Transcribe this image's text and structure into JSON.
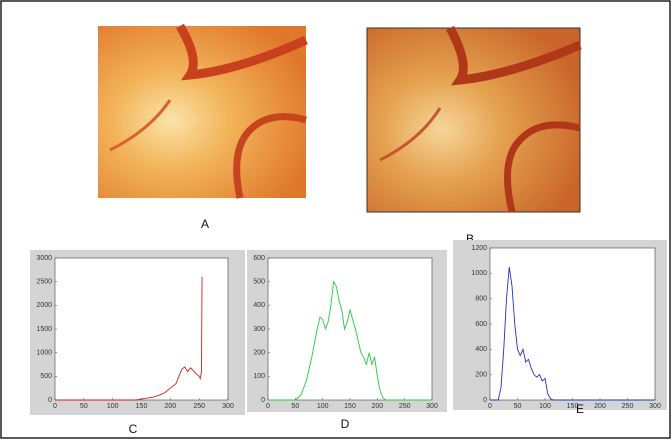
{
  "images": [
    {
      "label": "A"
    },
    {
      "label": "B"
    }
  ],
  "chart_data": [
    {
      "type": "line",
      "label": "C",
      "color": "#cc2222",
      "x": [
        0,
        140,
        150,
        160,
        170,
        180,
        190,
        200,
        205,
        210,
        215,
        220,
        225,
        230,
        235,
        240,
        245,
        250,
        252,
        254,
        255
      ],
      "values": [
        0,
        0,
        20,
        40,
        60,
        100,
        150,
        250,
        300,
        350,
        500,
        650,
        700,
        600,
        680,
        620,
        550,
        500,
        450,
        600,
        2600
      ],
      "xlim": [
        0,
        300
      ],
      "ylim": [
        0,
        3000
      ],
      "xticks": [
        0,
        50,
        100,
        150,
        200,
        250,
        300
      ],
      "yticks": [
        0,
        500,
        1000,
        1500,
        2000,
        2500,
        3000
      ]
    },
    {
      "type": "line",
      "label": "D",
      "color": "#22cc44",
      "x": [
        0,
        50,
        60,
        70,
        80,
        90,
        95,
        100,
        105,
        110,
        115,
        120,
        125,
        130,
        135,
        140,
        145,
        150,
        155,
        160,
        165,
        170,
        175,
        180,
        185,
        190,
        195,
        200,
        205,
        210,
        215,
        300
      ],
      "values": [
        0,
        0,
        20,
        80,
        180,
        300,
        350,
        340,
        300,
        330,
        400,
        500,
        480,
        420,
        380,
        300,
        330,
        380,
        340,
        300,
        250,
        200,
        180,
        150,
        200,
        150,
        180,
        100,
        40,
        10,
        0,
        0
      ],
      "xlim": [
        0,
        300
      ],
      "ylim": [
        0,
        600
      ],
      "xticks": [
        0,
        50,
        100,
        150,
        200,
        250,
        300
      ],
      "yticks": [
        0,
        100,
        200,
        300,
        400,
        500,
        600
      ]
    },
    {
      "type": "line",
      "label": "E",
      "color": "#2233bb",
      "x": [
        0,
        15,
        20,
        25,
        30,
        35,
        40,
        45,
        50,
        55,
        60,
        65,
        70,
        75,
        80,
        85,
        90,
        95,
        100,
        105,
        110,
        115,
        300
      ],
      "values": [
        0,
        0,
        100,
        400,
        800,
        1050,
        900,
        600,
        400,
        350,
        400,
        300,
        320,
        250,
        200,
        180,
        200,
        150,
        170,
        50,
        10,
        0,
        0
      ],
      "xlim": [
        0,
        300
      ],
      "ylim": [
        0,
        1200
      ],
      "xticks": [
        0,
        50,
        100,
        150,
        200,
        250,
        300
      ],
      "yticks": [
        0,
        200,
        400,
        600,
        800,
        1000,
        1200
      ]
    }
  ]
}
